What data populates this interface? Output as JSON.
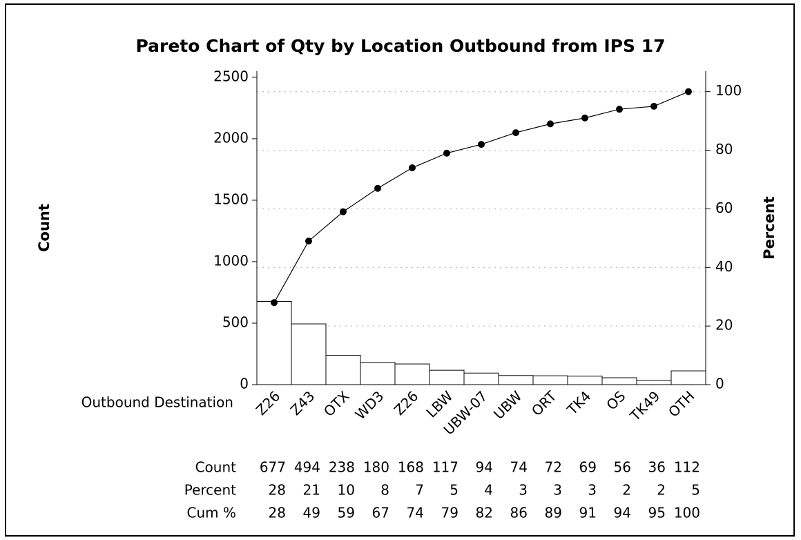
{
  "chart_data": {
    "type": "pareto",
    "title": "Pareto Chart of Qty by Location Outbound from IPS 17",
    "x_label": "Outbound Destination",
    "y_label": "Count",
    "y2_label": "Percent",
    "categories": [
      "Z26",
      "Z43",
      "OTX",
      "WD3",
      "Z26",
      "LBW",
      "UBW-07",
      "UBW",
      "ORT",
      "TK4",
      "OS",
      "TK49",
      "OTH"
    ],
    "series": [
      {
        "name": "Count",
        "color": "#ffffff",
        "values": [
          677,
          494,
          238,
          180,
          168,
          117,
          94,
          74,
          72,
          69,
          56,
          36,
          112
        ]
      },
      {
        "name": "Percent",
        "values": [
          28,
          21,
          10,
          8,
          7,
          5,
          4,
          3,
          3,
          3,
          2,
          2,
          5
        ]
      },
      {
        "name": "Cum %",
        "color": "#000000",
        "axis": "y2",
        "values": [
          28,
          49,
          59,
          67,
          74,
          79,
          82,
          86,
          89,
          91,
          94,
          95,
          100
        ]
      }
    ],
    "ylim": [
      0,
      2550
    ],
    "yticks": [
      0,
      500,
      1000,
      1500,
      2000,
      2500
    ],
    "y2lim": [
      0,
      107
    ],
    "y2ticks": [
      0,
      20,
      40,
      60,
      80,
      100
    ],
    "grid": true
  }
}
